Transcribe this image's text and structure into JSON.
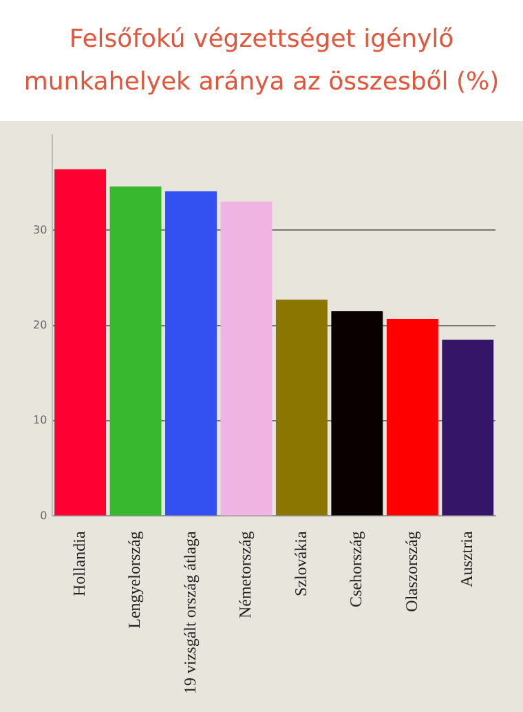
{
  "chart_data": {
    "type": "bar",
    "title": "Felsőfokú végzettséget igénylő munkahelyek aránya az összesből (%)",
    "categories": [
      "Hollandia",
      "Lengyelország",
      "19 vizsgált ország átlaga",
      "Németország",
      "Szlovákia",
      "Csehország",
      "Olaszország",
      "Ausztria"
    ],
    "values": [
      36.4,
      34.6,
      34.1,
      33.0,
      22.7,
      21.5,
      20.7,
      18.5
    ],
    "colors": [
      "#ff0033",
      "#38b82e",
      "#3350f0",
      "#f0b4e2",
      "#8a7600",
      "#0a0000",
      "#ff0000",
      "#341568"
    ],
    "ylim": [
      0,
      40
    ],
    "yticks": [
      0,
      10,
      20,
      30
    ],
    "grid": "y",
    "legend": false
  }
}
